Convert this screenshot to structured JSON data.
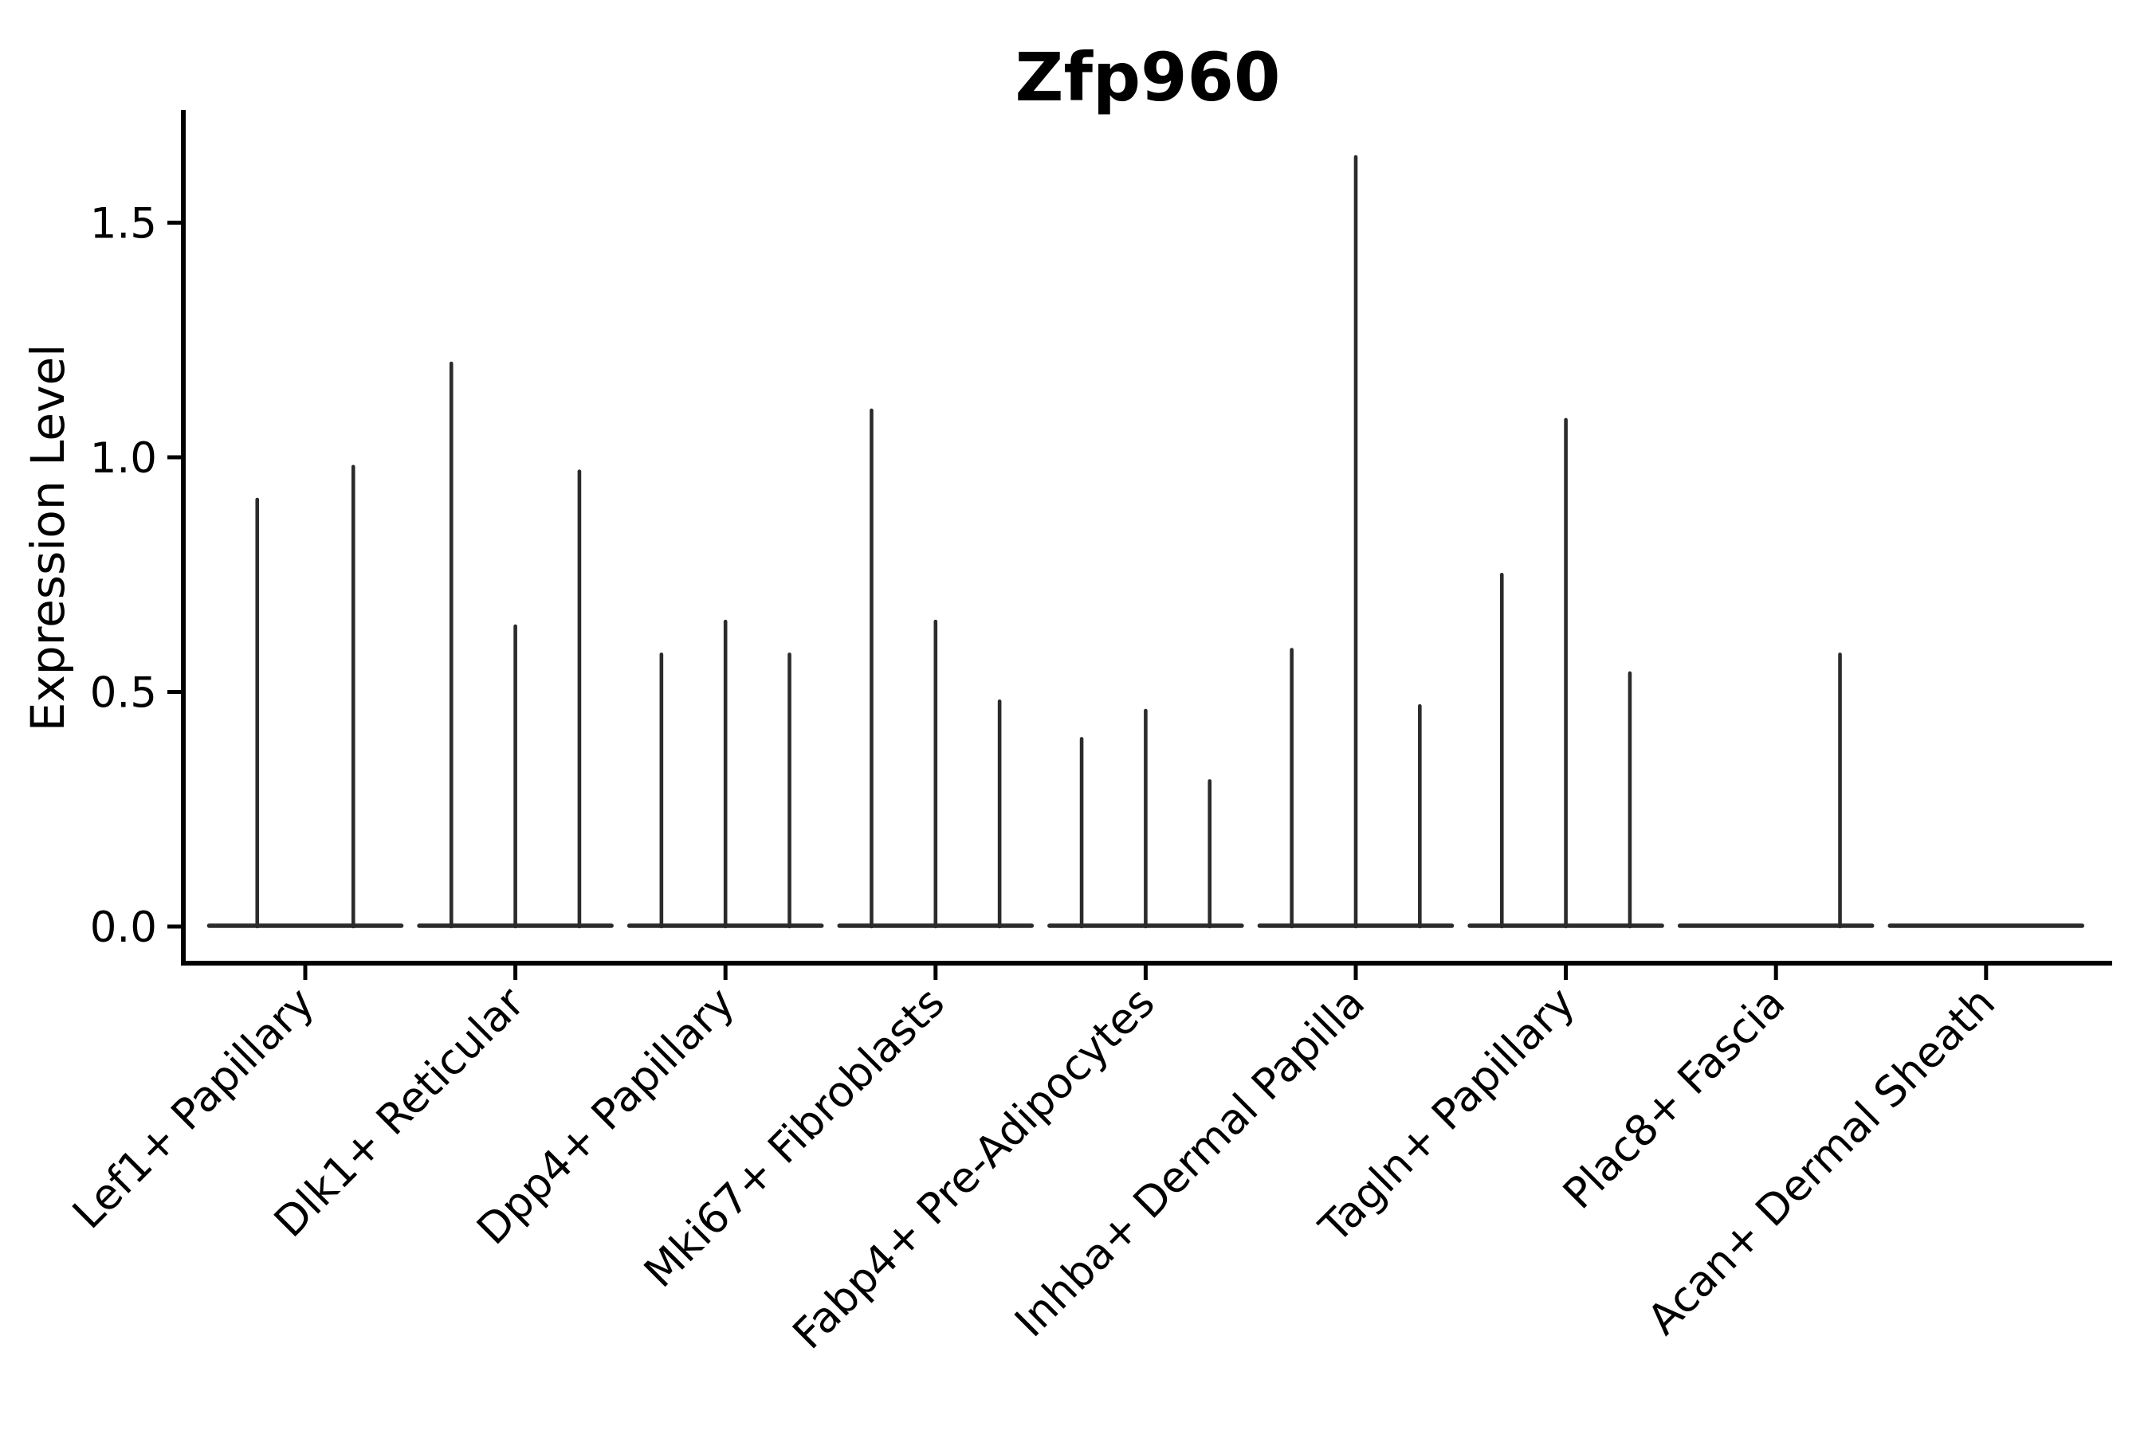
{
  "figure": {
    "background": "#ffffff"
  },
  "chart_data": {
    "type": "violin",
    "title": "Zfp960",
    "xlabel": "",
    "ylabel": "Expression Level",
    "ylim": [
      0,
      1.74
    ],
    "yticks": [
      0.0,
      0.5,
      1.0,
      1.5
    ],
    "ytick_labels": [
      "0.0",
      "0.5",
      "1.0",
      "1.5"
    ],
    "grid": false,
    "legend": "none",
    "categories": [
      "Lef1+ Papillary",
      "Dlk1+ Reticular",
      "Dpp4+ Papillary",
      "Mki67+ Fibroblasts",
      "Fabp4+ Pre-Adipocytes",
      "Inhba+ Dermal Papilla",
      "Tagln+ Papillary",
      "Plac8+ Fascia",
      "Acan+ Dermal Sheath"
    ],
    "groups": [
      {
        "category": "Lef1+ Papillary",
        "violin_peaks": [
          0.91,
          0.98
        ]
      },
      {
        "category": "Dlk1+ Reticular",
        "violin_peaks": [
          1.2,
          0.64,
          0.97
        ]
      },
      {
        "category": "Dpp4+ Papillary",
        "violin_peaks": [
          0.58,
          0.65,
          0.58
        ]
      },
      {
        "category": "Mki67+ Fibroblasts",
        "violin_peaks": [
          1.1,
          0.65,
          0.48
        ]
      },
      {
        "category": "Fabp4+ Pre-Adipocytes",
        "violin_peaks": [
          0.4,
          0.46,
          0.31
        ]
      },
      {
        "category": "Inhba+ Dermal Papilla",
        "violin_peaks": [
          0.59,
          1.64,
          0.47
        ]
      },
      {
        "category": "Tagln+ Papillary",
        "violin_peaks": [
          0.75,
          1.08,
          0.54
        ]
      },
      {
        "category": "Plac8+ Fascia",
        "violin_peaks": [
          0.0,
          0.0,
          0.58
        ]
      },
      {
        "category": "Acan+ Dermal Sheath",
        "violin_peaks": [
          0.0,
          0.0,
          0.0
        ]
      }
    ],
    "colors": {
      "axis": "#000000",
      "violin": "#2b2b2b",
      "text": "#000000",
      "background": "#ffffff"
    }
  }
}
